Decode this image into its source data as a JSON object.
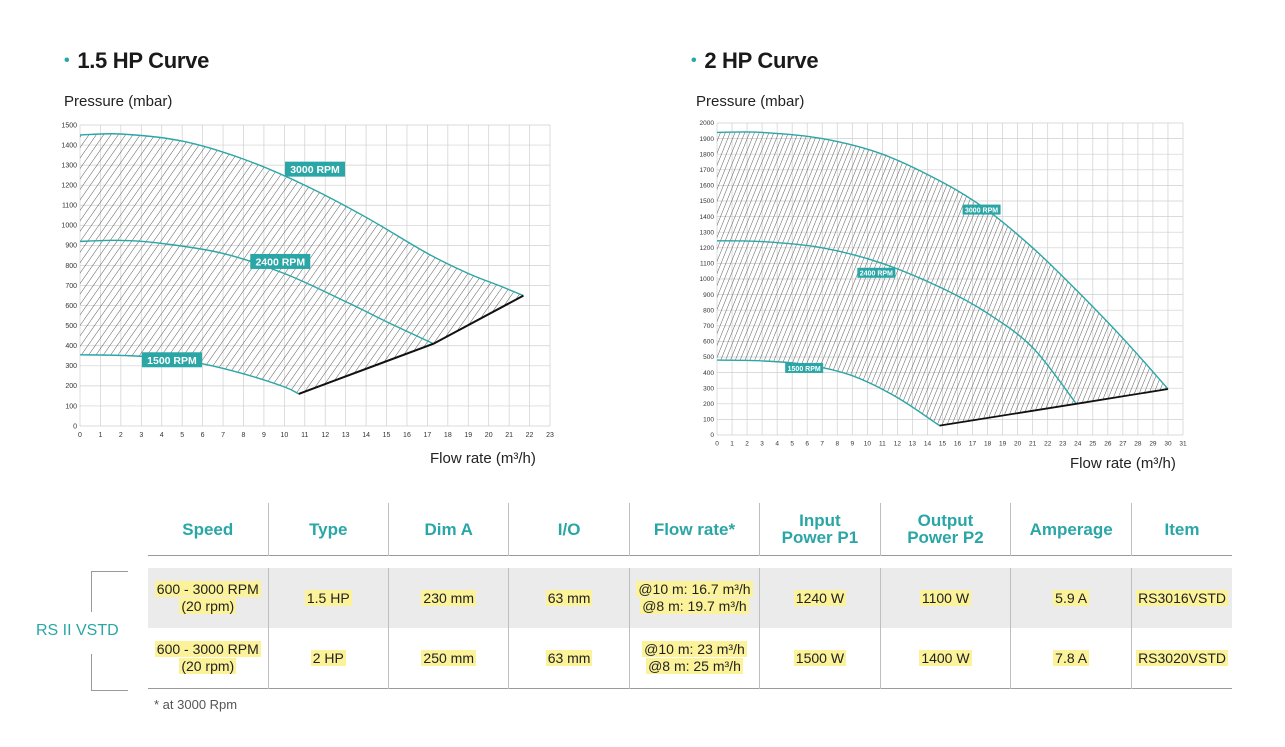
{
  "chart_data": [
    {
      "type": "area",
      "title": "1.5 HP Curve",
      "ylabel": "Pressure (mbar)",
      "xlabel": "Flow rate (m³/h)",
      "xlim": [
        0,
        23
      ],
      "ylim": [
        0,
        1500
      ],
      "xticks": [
        0,
        1,
        2,
        3,
        4,
        5,
        6,
        7,
        8,
        9,
        10,
        11,
        12,
        13,
        14,
        15,
        16,
        17,
        18,
        19,
        20,
        21,
        22,
        23
      ],
      "yticks": [
        0,
        100,
        200,
        300,
        400,
        500,
        600,
        700,
        800,
        900,
        1000,
        1100,
        1200,
        1300,
        1400,
        1500
      ],
      "grid": true,
      "series": [
        {
          "name": "3000 RPM",
          "x": [
            0,
            2,
            5,
            8,
            11,
            14,
            17,
            19,
            20.5,
            21.7
          ],
          "y": [
            1450,
            1455,
            1420,
            1330,
            1200,
            1040,
            860,
            760,
            700,
            650
          ]
        },
        {
          "name": "2400 RPM",
          "x": [
            0,
            2,
            4,
            7,
            10,
            13,
            15,
            17.3
          ],
          "y": [
            920,
            925,
            910,
            860,
            760,
            620,
            520,
            410
          ]
        },
        {
          "name": "1500 RPM",
          "x": [
            0,
            2,
            4,
            6,
            8,
            10,
            10.7
          ],
          "y": [
            355,
            352,
            340,
            310,
            260,
            195,
            160
          ]
        },
        {
          "name": "",
          "x": [
            10.7,
            17.3,
            21.7
          ],
          "y": [
            160,
            410,
            650
          ]
        }
      ]
    },
    {
      "type": "area",
      "title": "2 HP Curve",
      "ylabel": "Pressure (mbar)",
      "xlabel": "Flow rate (m³/h)",
      "xlim": [
        0,
        31
      ],
      "ylim": [
        0,
        2000
      ],
      "xticks": [
        0,
        1,
        2,
        3,
        4,
        5,
        6,
        7,
        8,
        9,
        10,
        11,
        12,
        13,
        14,
        15,
        16,
        17,
        18,
        19,
        20,
        21,
        22,
        23,
        24,
        25,
        26,
        27,
        28,
        29,
        30,
        31
      ],
      "yticks": [
        0,
        100,
        200,
        300,
        400,
        500,
        600,
        700,
        800,
        900,
        1000,
        1100,
        1200,
        1300,
        1400,
        1500,
        1600,
        1700,
        1800,
        1900,
        2000
      ],
      "grid": true,
      "series": [
        {
          "name": "3000 RPM",
          "x": [
            0,
            3,
            7,
            11,
            15,
            18,
            21,
            24,
            27,
            30
          ],
          "y": [
            1940,
            1940,
            1900,
            1800,
            1620,
            1440,
            1200,
            920,
            620,
            295
          ]
        },
        {
          "name": "2400 RPM",
          "x": [
            0,
            3,
            7,
            11,
            15,
            18,
            21,
            23.9
          ],
          "y": [
            1245,
            1240,
            1200,
            1100,
            940,
            780,
            560,
            200
          ]
        },
        {
          "name": "1500 RPM",
          "x": [
            0,
            3,
            6,
            9,
            12,
            14.8
          ],
          "y": [
            480,
            475,
            450,
            380,
            240,
            60
          ]
        },
        {
          "name": "",
          "x": [
            14.8,
            23.9,
            30
          ],
          "y": [
            60,
            200,
            295
          ]
        }
      ]
    }
  ],
  "table": {
    "headers": [
      "Speed",
      "Type",
      "Dim A",
      "I/O",
      "Flow rate*",
      "Input\nPower P1",
      "Output\nPower P2",
      "Amperage",
      "Item"
    ],
    "group_label": "RS II VSTD",
    "rows": [
      {
        "speed": [
          "600 - 3000 RPM",
          "(20 rpm)"
        ],
        "type": "1.5 HP",
        "dim_a": "230 mm",
        "io": "63 mm",
        "flow": [
          "@10 m: 16.7 m³/h",
          "@8 m: 19.7 m³/h"
        ],
        "p1": "1240 W",
        "p2": "1100 W",
        "amperage": "5.9 A",
        "item": "RS3016VSTD"
      },
      {
        "speed": [
          "600 - 3000 RPM",
          "(20 rpm)"
        ],
        "type": "2 HP",
        "dim_a": "250 mm",
        "io": "63 mm",
        "flow": [
          "@10 m: 23 m³/h",
          "@8 m: 25 m³/h"
        ],
        "p1": "1500 W",
        "p2": "1400 W",
        "amperage": "7.8 A",
        "item": "RS3020VSTD"
      }
    ],
    "footnote": "* at 3000 Rpm"
  },
  "colors": {
    "accent": "#2aa6a6",
    "highlight": "#fbf29a"
  }
}
